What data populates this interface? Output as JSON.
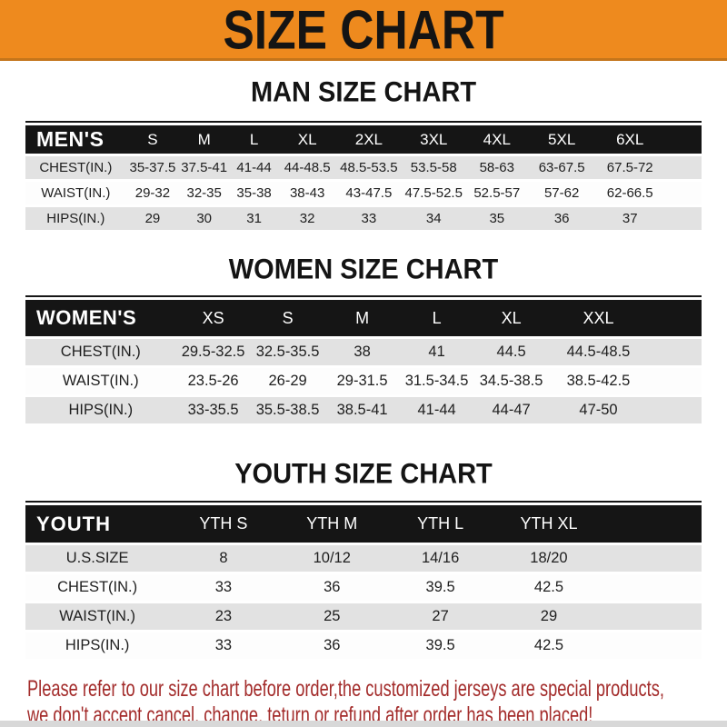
{
  "banner": {
    "title": "SIZE CHART"
  },
  "sections": [
    {
      "heading": "MAN SIZE CHART",
      "table": {
        "corner": "MEN'S",
        "sizes": [
          "S",
          "M",
          "L",
          "XL",
          "2XL",
          "3XL",
          "4XL",
          "5XL",
          "6XL"
        ],
        "rows": [
          {
            "label": "CHEST(IN.)",
            "values": [
              "35-37.5",
              "37.5-41",
              "41-44",
              "44-48.5",
              "48.5-53.5",
              "53.5-58",
              "58-63",
              "63-67.5",
              "67.5-72"
            ]
          },
          {
            "label": "WAIST(IN.)",
            "values": [
              "29-32",
              "32-35",
              "35-38",
              "38-43",
              "43-47.5",
              "47.5-52.5",
              "52.5-57",
              "57-62",
              "62-66.5"
            ]
          },
          {
            "label": "HIPS(IN.)",
            "values": [
              "29",
              "30",
              "31",
              "32",
              "33",
              "34",
              "35",
              "36",
              "37"
            ]
          }
        ]
      }
    },
    {
      "heading": "WOMEN SIZE CHART",
      "table": {
        "corner": "WOMEN'S",
        "sizes": [
          "XS",
          "S",
          "M",
          "L",
          "XL",
          "XXL"
        ],
        "rows": [
          {
            "label": "CHEST(IN.)",
            "values": [
              "29.5-32.5",
              "32.5-35.5",
              "38",
              "41",
              "44.5",
              "44.5-48.5"
            ]
          },
          {
            "label": "WAIST(IN.)",
            "values": [
              "23.5-26",
              "26-29",
              "29-31.5",
              "31.5-34.5",
              "34.5-38.5",
              "38.5-42.5"
            ]
          },
          {
            "label": "HIPS(IN.)",
            "values": [
              "33-35.5",
              "35.5-38.5",
              "38.5-41",
              "41-44",
              "44-47",
              "47-50"
            ]
          }
        ]
      }
    },
    {
      "heading": "YOUTH SIZE CHART",
      "table": {
        "corner": "YOUTH",
        "sizes": [
          "YTH S",
          "YTH M",
          "YTH L",
          "YTH XL"
        ],
        "rows": [
          {
            "label": "U.S.SIZE",
            "values": [
              "8",
              "10/12",
              "14/16",
              "18/20"
            ]
          },
          {
            "label": "CHEST(IN.)",
            "values": [
              "33",
              "36",
              "39.5",
              "42.5"
            ]
          },
          {
            "label": "WAIST(IN.)",
            "values": [
              "23",
              "25",
              "27",
              "29"
            ]
          },
          {
            "label": "HIPS(IN.)",
            "values": [
              "33",
              "36",
              "39.5",
              "42.5"
            ]
          }
        ]
      }
    }
  ],
  "footer": {
    "lines": [
      "Please refer to our size chart before order,the customized jerseys are special products,",
      "we don't accept cancel, change, teturn or refund after order has been placed!"
    ]
  },
  "colors": {
    "banner_orange": "#EE8A1E",
    "header_bar_black": "#151515",
    "row_gray": "#E2E2E2",
    "footer_red": "#A32C2B"
  }
}
